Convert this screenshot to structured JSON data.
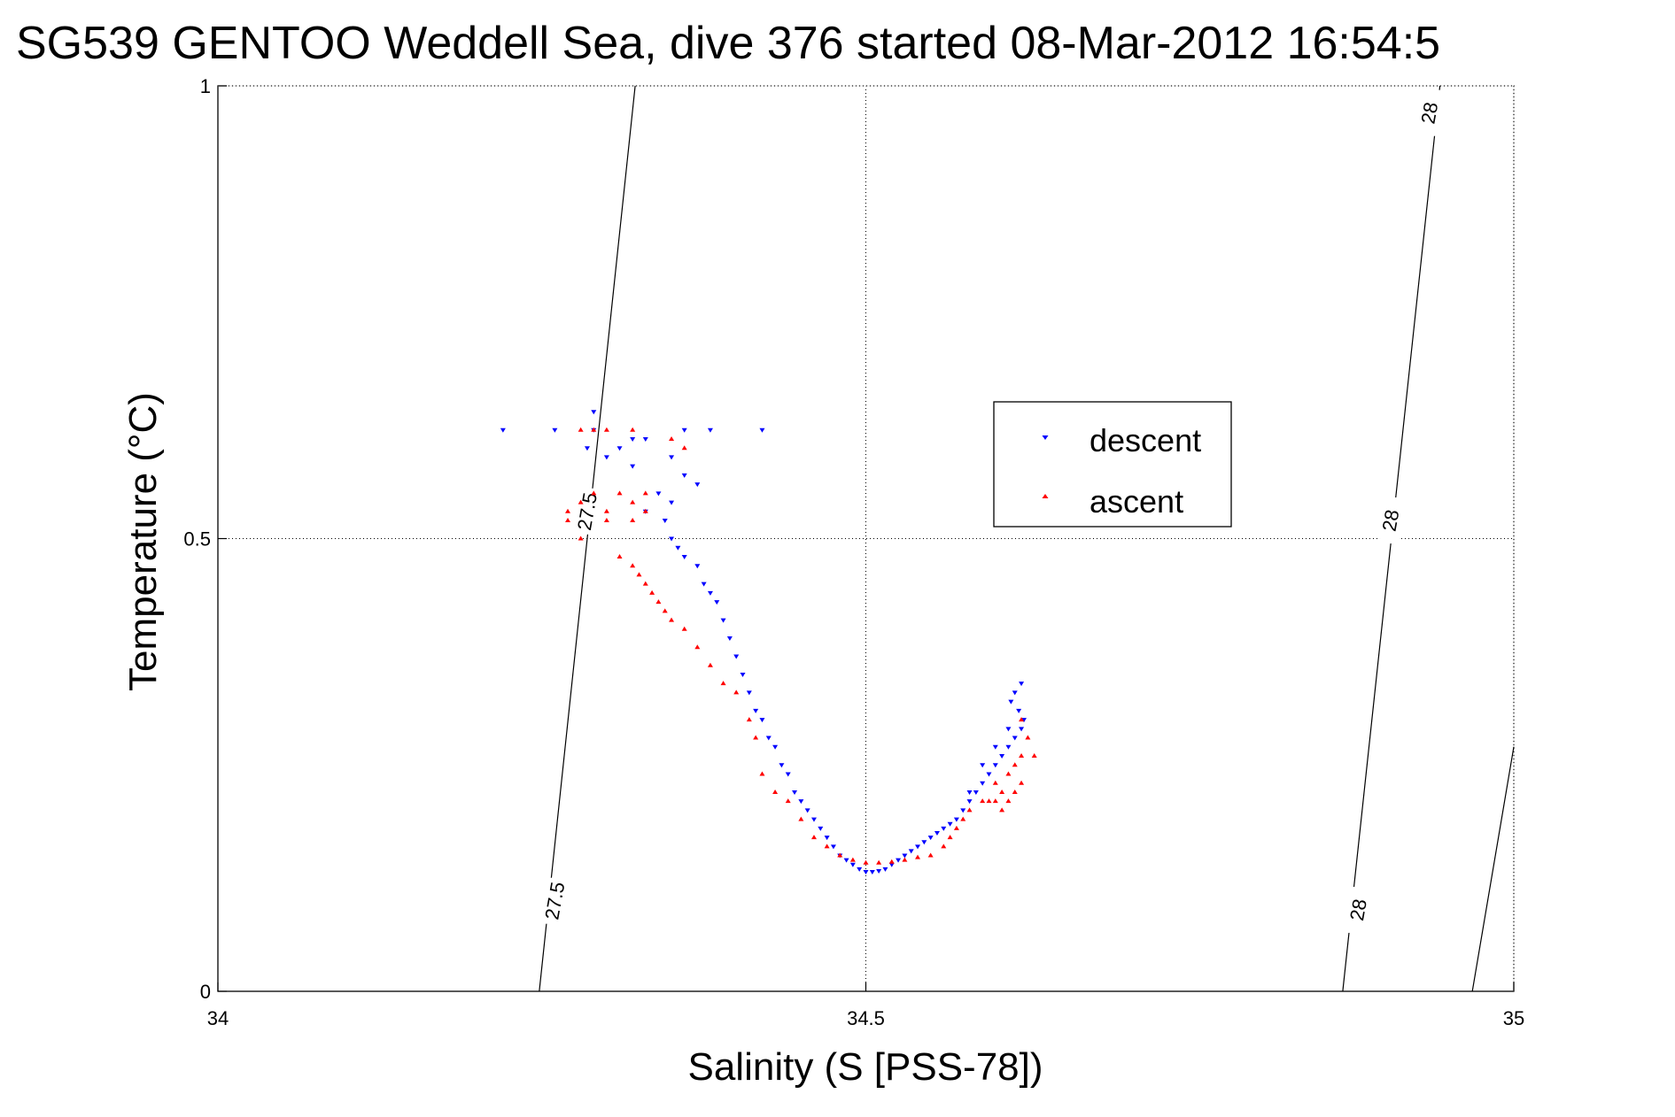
{
  "chart_data": {
    "type": "scatter",
    "title": "SG539 GENTOO Weddell Sea, dive 376 started 08-Mar-2012 16:54:5",
    "xlabel": "Salinity (S [PSS-78])",
    "ylabel": "Temperature (°C)",
    "xlim": [
      34,
      35
    ],
    "ylim": [
      0,
      1
    ],
    "x_ticks": [
      34,
      34.5,
      35
    ],
    "y_ticks": [
      0,
      0.5,
      1
    ],
    "x_tick_labels": [
      "34",
      "34.5",
      "35"
    ],
    "y_tick_labels": [
      "0",
      "0.5",
      "1"
    ],
    "grid": "dotted at ticks",
    "legend": {
      "placement": "inside, right of center",
      "entries": [
        "descent",
        "ascent"
      ]
    },
    "series": [
      {
        "name": "descent",
        "color": "#0000ff",
        "marker": "triangle-down",
        "points": [
          [
            34.22,
            0.62
          ],
          [
            34.26,
            0.62
          ],
          [
            34.29,
            0.62
          ],
          [
            34.32,
            0.61
          ],
          [
            34.36,
            0.62
          ],
          [
            34.38,
            0.62
          ],
          [
            34.42,
            0.62
          ],
          [
            34.29,
            0.64
          ],
          [
            34.285,
            0.6
          ],
          [
            34.3,
            0.59
          ],
          [
            34.31,
            0.6
          ],
          [
            34.32,
            0.58
          ],
          [
            34.33,
            0.61
          ],
          [
            34.35,
            0.59
          ],
          [
            34.36,
            0.57
          ],
          [
            34.37,
            0.56
          ],
          [
            34.35,
            0.54
          ],
          [
            34.34,
            0.55
          ],
          [
            34.33,
            0.53
          ],
          [
            34.345,
            0.52
          ],
          [
            34.35,
            0.5
          ],
          [
            34.355,
            0.49
          ],
          [
            34.36,
            0.48
          ],
          [
            34.37,
            0.47
          ],
          [
            34.375,
            0.45
          ],
          [
            34.38,
            0.44
          ],
          [
            34.385,
            0.43
          ],
          [
            34.39,
            0.41
          ],
          [
            34.395,
            0.39
          ],
          [
            34.4,
            0.37
          ],
          [
            34.405,
            0.35
          ],
          [
            34.41,
            0.33
          ],
          [
            34.415,
            0.31
          ],
          [
            34.42,
            0.3
          ],
          [
            34.425,
            0.28
          ],
          [
            34.43,
            0.27
          ],
          [
            34.435,
            0.25
          ],
          [
            34.44,
            0.24
          ],
          [
            34.445,
            0.22
          ],
          [
            34.45,
            0.21
          ],
          [
            34.455,
            0.2
          ],
          [
            34.46,
            0.19
          ],
          [
            34.465,
            0.18
          ],
          [
            34.47,
            0.17
          ],
          [
            34.475,
            0.16
          ],
          [
            34.48,
            0.15
          ],
          [
            34.485,
            0.145
          ],
          [
            34.49,
            0.14
          ],
          [
            34.495,
            0.135
          ],
          [
            34.5,
            0.132
          ],
          [
            34.505,
            0.132
          ],
          [
            34.51,
            0.133
          ],
          [
            34.515,
            0.135
          ],
          [
            34.52,
            0.14
          ],
          [
            34.525,
            0.145
          ],
          [
            34.53,
            0.15
          ],
          [
            34.535,
            0.155
          ],
          [
            34.54,
            0.16
          ],
          [
            34.545,
            0.165
          ],
          [
            34.55,
            0.17
          ],
          [
            34.555,
            0.175
          ],
          [
            34.56,
            0.18
          ],
          [
            34.565,
            0.185
          ],
          [
            34.57,
            0.19
          ],
          [
            34.575,
            0.2
          ],
          [
            34.58,
            0.21
          ],
          [
            34.585,
            0.22
          ],
          [
            34.59,
            0.23
          ],
          [
            34.595,
            0.24
          ],
          [
            34.6,
            0.25
          ],
          [
            34.605,
            0.26
          ],
          [
            34.61,
            0.27
          ],
          [
            34.615,
            0.28
          ],
          [
            34.62,
            0.29
          ],
          [
            34.622,
            0.3
          ],
          [
            34.618,
            0.31
          ],
          [
            34.612,
            0.32
          ],
          [
            34.615,
            0.33
          ],
          [
            34.62,
            0.34
          ],
          [
            34.61,
            0.29
          ],
          [
            34.6,
            0.27
          ],
          [
            34.59,
            0.25
          ],
          [
            34.58,
            0.22
          ]
        ]
      },
      {
        "name": "ascent",
        "color": "#ff0000",
        "marker": "triangle-up",
        "points": [
          [
            34.28,
            0.62
          ],
          [
            34.29,
            0.62
          ],
          [
            34.3,
            0.62
          ],
          [
            34.32,
            0.62
          ],
          [
            34.35,
            0.61
          ],
          [
            34.36,
            0.6
          ],
          [
            34.27,
            0.53
          ],
          [
            34.28,
            0.54
          ],
          [
            34.29,
            0.55
          ],
          [
            34.3,
            0.53
          ],
          [
            34.31,
            0.55
          ],
          [
            34.32,
            0.54
          ],
          [
            34.33,
            0.53
          ],
          [
            34.27,
            0.52
          ],
          [
            34.28,
            0.5
          ],
          [
            34.3,
            0.52
          ],
          [
            34.32,
            0.52
          ],
          [
            34.33,
            0.55
          ],
          [
            34.31,
            0.48
          ],
          [
            34.32,
            0.47
          ],
          [
            34.325,
            0.46
          ],
          [
            34.33,
            0.45
          ],
          [
            34.335,
            0.44
          ],
          [
            34.34,
            0.43
          ],
          [
            34.345,
            0.42
          ],
          [
            34.35,
            0.41
          ],
          [
            34.36,
            0.4
          ],
          [
            34.37,
            0.38
          ],
          [
            34.38,
            0.36
          ],
          [
            34.39,
            0.34
          ],
          [
            34.4,
            0.33
          ],
          [
            34.41,
            0.3
          ],
          [
            34.415,
            0.28
          ],
          [
            34.42,
            0.24
          ],
          [
            34.43,
            0.22
          ],
          [
            34.44,
            0.21
          ],
          [
            34.45,
            0.19
          ],
          [
            34.46,
            0.17
          ],
          [
            34.47,
            0.16
          ],
          [
            34.48,
            0.15
          ],
          [
            34.49,
            0.145
          ],
          [
            34.5,
            0.142
          ],
          [
            34.51,
            0.142
          ],
          [
            34.52,
            0.143
          ],
          [
            34.53,
            0.145
          ],
          [
            34.54,
            0.148
          ],
          [
            34.55,
            0.15
          ],
          [
            34.56,
            0.16
          ],
          [
            34.565,
            0.17
          ],
          [
            34.57,
            0.18
          ],
          [
            34.575,
            0.19
          ],
          [
            34.58,
            0.2
          ],
          [
            34.59,
            0.21
          ],
          [
            34.6,
            0.21
          ],
          [
            34.605,
            0.2
          ],
          [
            34.61,
            0.21
          ],
          [
            34.615,
            0.22
          ],
          [
            34.62,
            0.23
          ],
          [
            34.61,
            0.24
          ],
          [
            34.62,
            0.26
          ],
          [
            34.625,
            0.28
          ],
          [
            34.62,
            0.3
          ],
          [
            34.615,
            0.25
          ],
          [
            34.605,
            0.22
          ],
          [
            34.6,
            0.23
          ],
          [
            34.595,
            0.21
          ],
          [
            34.63,
            0.26
          ]
        ]
      }
    ],
    "isopycnals": [
      {
        "value": 27.5,
        "line": [
          [
            34.248,
            0
          ],
          [
            34.322,
            1
          ]
        ],
        "labels": [
          {
            "text": "27.5",
            "x": 34.26,
            "y": 0.1
          },
          {
            "text": "27.5",
            "x": 34.285,
            "y": 0.53
          }
        ]
      },
      {
        "value": 28,
        "line": [
          [
            34.968,
            0
          ],
          [
            35.0,
            0.27
          ]
        ],
        "line_upper": [
          [
            34.868,
            0
          ],
          [
            34.943,
            1
          ]
        ],
        "labels": [
          {
            "text": "28",
            "x": 34.88,
            "y": 0.09
          },
          {
            "text": "28",
            "x": 34.905,
            "y": 0.52
          },
          {
            "text": "28",
            "x": 34.935,
            "y": 0.97
          }
        ]
      }
    ]
  }
}
